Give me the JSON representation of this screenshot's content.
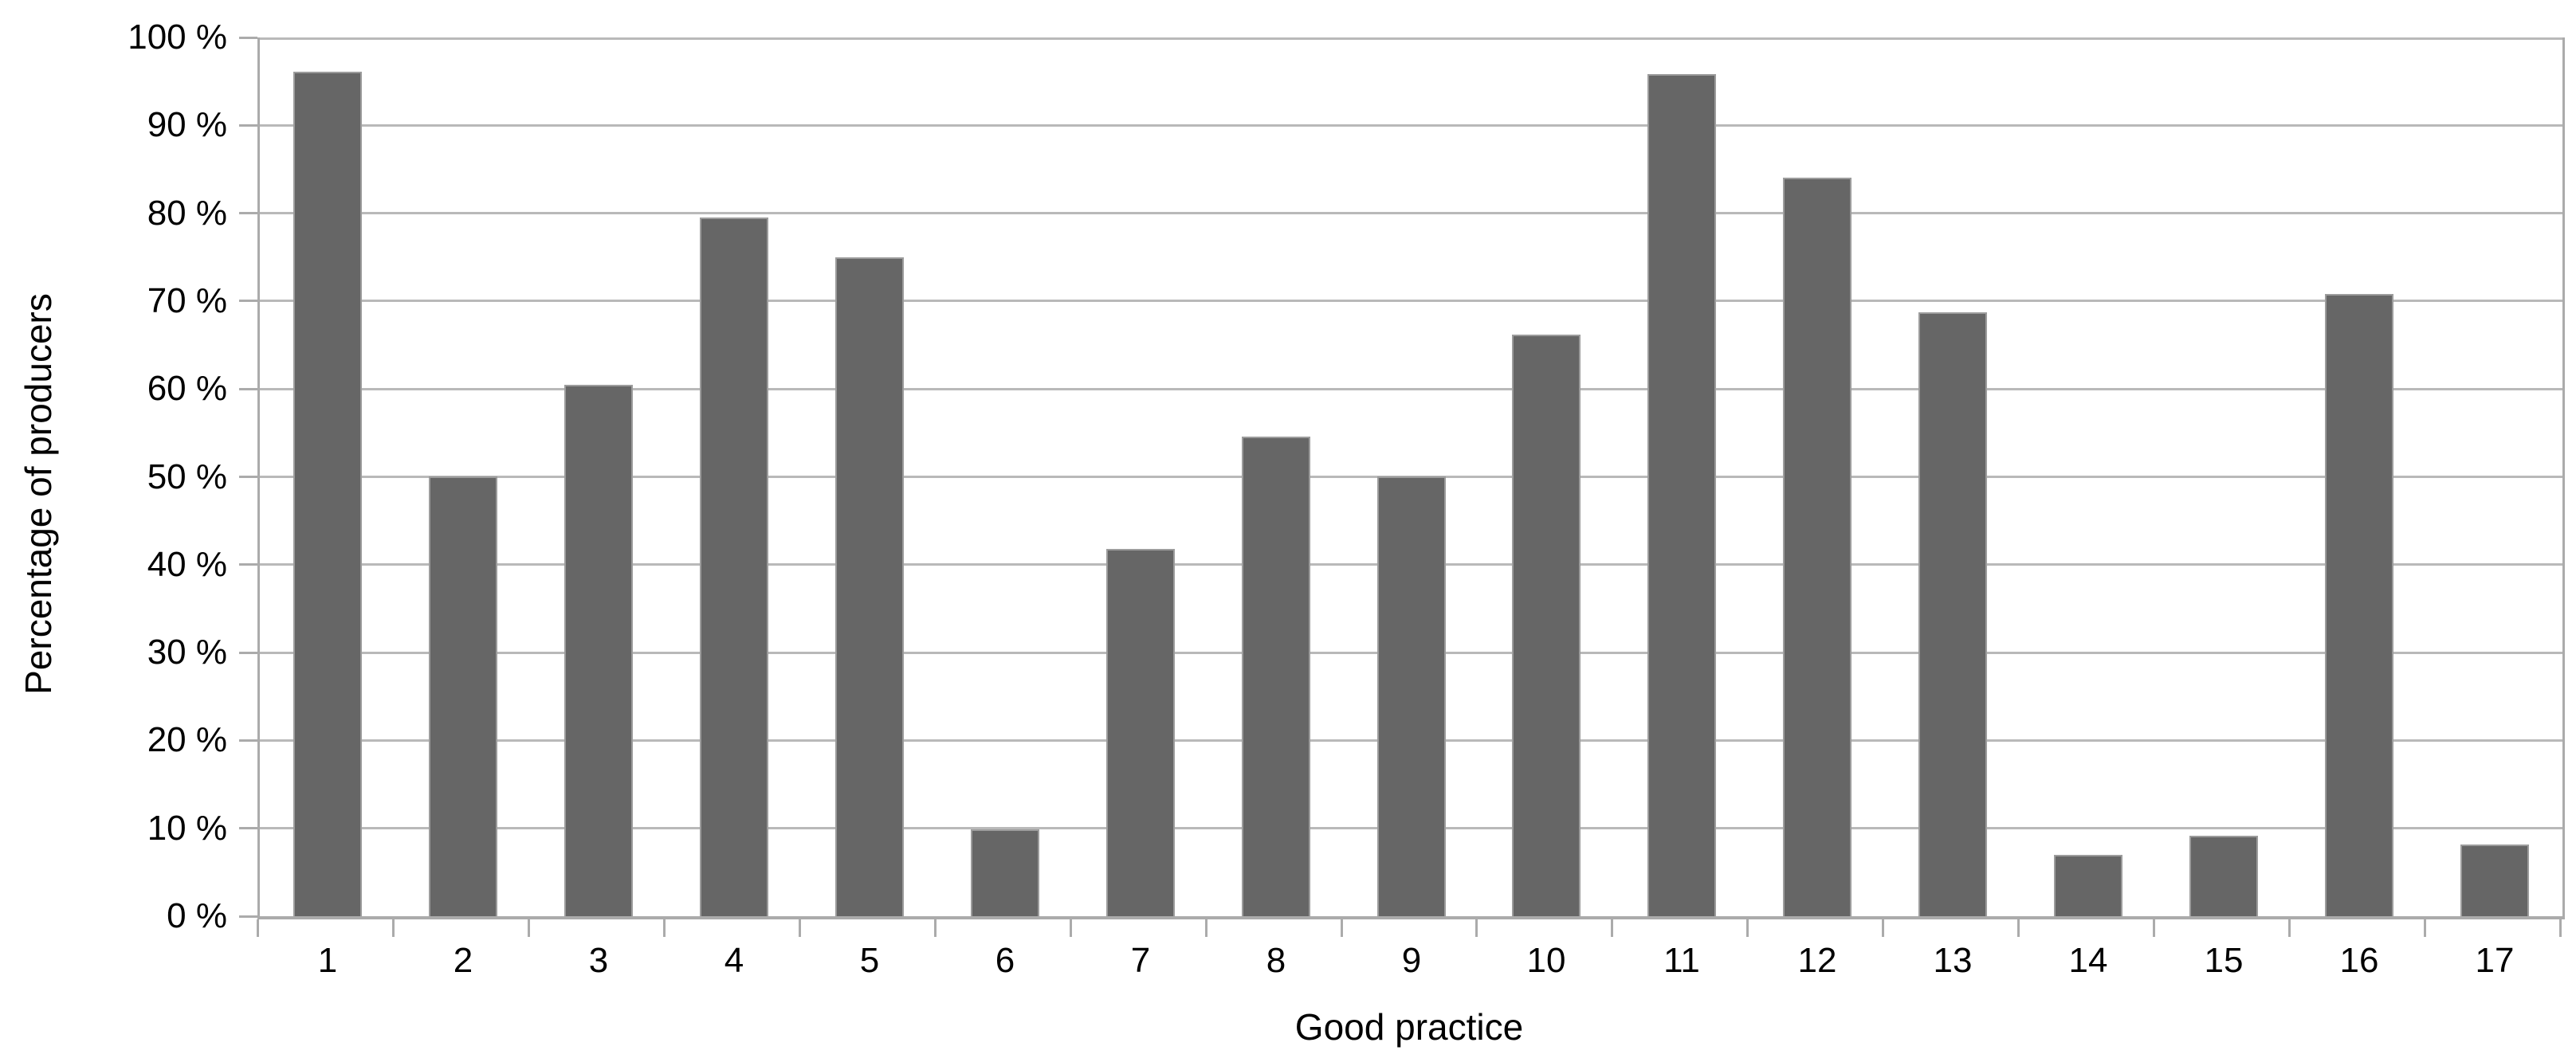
{
  "chart_data": {
    "type": "bar",
    "title": "",
    "xlabel": "Good practice",
    "ylabel": "Percentage of producers",
    "categories": [
      "1",
      "2",
      "3",
      "4",
      "5",
      "6",
      "7",
      "8",
      "9",
      "10",
      "11",
      "12",
      "13",
      "14",
      "15",
      "16",
      "17"
    ],
    "values": [
      96.1,
      50,
      60.5,
      79.5,
      75,
      9.9,
      41.8,
      54.6,
      50,
      66.2,
      95.8,
      84,
      68.7,
      7,
      9.2,
      70.8,
      8.2
    ],
    "series_name": "Percentage of producers",
    "y_tick_labels": [
      "100 %",
      "90 %",
      "80 %",
      "70 %",
      "60 %",
      "50 %",
      "40 %",
      "30 %",
      "20 %",
      "10 %",
      "0 %"
    ],
    "ylim": [
      0,
      100
    ],
    "y_tick_step": 10,
    "grid": "horizontal",
    "legend": "none",
    "colors": {
      "bar_fill": "#666666",
      "bar_border": "#9c9c9c",
      "gridline": "#b9b9b9",
      "axis": "#ababab",
      "text": "#000000",
      "background": "#ffffff"
    }
  }
}
